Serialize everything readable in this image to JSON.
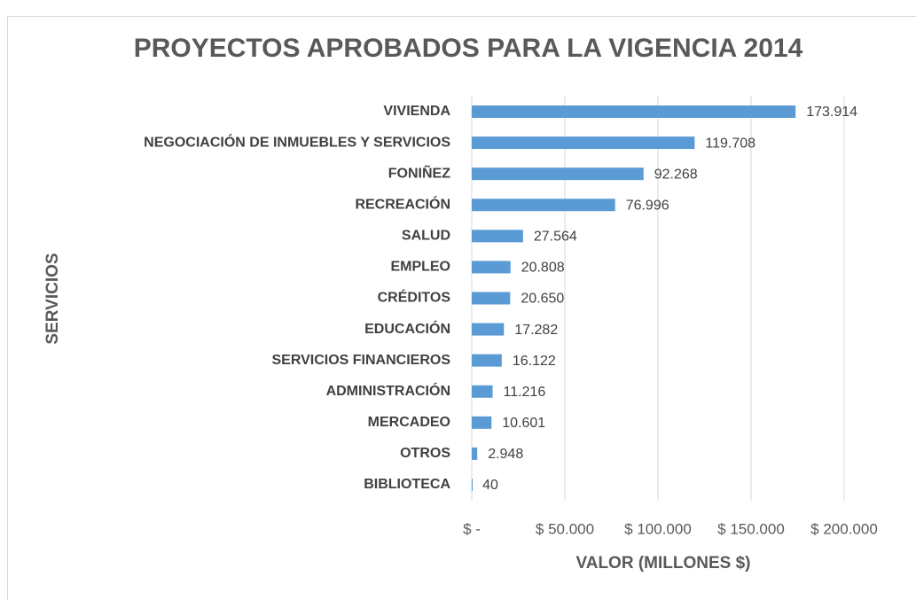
{
  "chart_data": {
    "type": "barh",
    "title": "PROYECTOS APROBADOS PARA LA VIGENCIA 2014",
    "x_label": "VALOR (MILLONES $)",
    "y_label": "SERVICIOS",
    "categories": [
      "VIVIENDA",
      "NEGOCIACIÓN DE INMUEBLES Y SERVICIOS",
      "FONIÑEZ",
      "RECREACIÓN",
      "SALUD",
      "EMPLEO",
      "CRÉDITOS",
      "EDUCACIÓN",
      "SERVICIOS FINANCIEROS",
      "ADMINISTRACIÓN",
      "MERCADEO",
      "OTROS",
      "BIBLIOTECA"
    ],
    "values": [
      173914,
      119708,
      92268,
      76996,
      27564,
      20808,
      20650,
      17282,
      16122,
      11216,
      10601,
      2948,
      40
    ],
    "value_labels": [
      "173.914",
      "119.708",
      "92.268",
      "76.996",
      "27.564",
      "20.808",
      "20.650",
      "17.282",
      "16.122",
      "11.216",
      "10.601",
      "2.948",
      "40"
    ],
    "color": "#5b9bd5",
    "xlim": [
      0,
      200000
    ],
    "xticks": [
      {
        "value": 0,
        "label": "$ -"
      },
      {
        "value": 50000,
        "label": "$ 50.000"
      },
      {
        "value": 100000,
        "label": "$ 100.000"
      },
      {
        "value": 150000,
        "label": "$ 150.000"
      },
      {
        "value": 200000,
        "label": "$ 200.000"
      }
    ],
    "grid": true
  }
}
